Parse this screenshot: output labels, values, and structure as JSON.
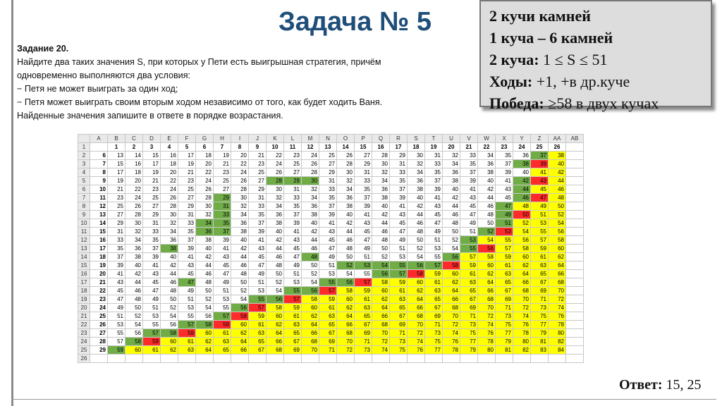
{
  "title": "Задача № 5",
  "task": {
    "heading": "Задание 20.",
    "lines": [
      "Найдите два таких значения S, при которых у Пети есть выигрышная стратегия, причём",
      "одновременно выполняются два условия:",
      "− Петя не может выиграть за один ход;",
      "− Петя может выиграть своим вторым ходом независимо от того, как будет ходить Ваня.",
      "Найденные значения запишите в ответе в порядке возрастания."
    ]
  },
  "infobox": {
    "line1": "2 кучи камней",
    "line2": "1 куча – 6 камней",
    "line3_label": "2 куча:",
    "line3_value": " 1 ≤ S ≤ 51",
    "line4_label": "Ходы:",
    "line4_value": " +1, +в др.куче",
    "line5_label": "Победа:",
    "line5_value": " ≥58 в двух кучах"
  },
  "answer": {
    "label": "Ответ:",
    "value": " 15, 25"
  },
  "colors": {
    "green": "#70ad47",
    "red": "#ff2a2a",
    "yellow": "#ffff00",
    "title": "#1f4e79"
  },
  "sheet": {
    "columns": [
      "A",
      "B",
      "C",
      "D",
      "E",
      "F",
      "G",
      "H",
      "I",
      "J",
      "K",
      "L",
      "M",
      "N",
      "O",
      "P",
      "Q",
      "R",
      "S",
      "T",
      "U",
      "V",
      "W",
      "X",
      "Y",
      "Z",
      "AA",
      "AB"
    ],
    "header_values": [
      "1",
      "2",
      "3",
      "4",
      "5",
      "6",
      "7",
      "8",
      "9",
      "10",
      "11",
      "12",
      "13",
      "14",
      "15",
      "16",
      "17",
      "18",
      "19",
      "20",
      "21",
      "22",
      "23",
      "24",
      "25",
      "26"
    ],
    "row_s": [
      "6",
      "7",
      "8",
      "9",
      "10",
      "11",
      "12",
      "13",
      "14",
      "15",
      "16",
      "17",
      "18",
      "19",
      "20",
      "21",
      "22",
      "23",
      "24",
      "25",
      "26",
      "27",
      "28",
      "29"
    ],
    "first_value": [
      13,
      15,
      17,
      19,
      21,
      23,
      25,
      27,
      29,
      31,
      33,
      35,
      37,
      39,
      41,
      43,
      45,
      47,
      49,
      51,
      53,
      55,
      57,
      59
    ],
    "color_rows": [
      "........................gy",
      ".......................gry",
      "........................yy",
      ".........ggg...........gry",
      ".......................gyy",
      "......g................gry",
      "......g...............gyyy",
      "......g...............gryy",
      ".....gg...............gyyy",
      ".....gg..............gryyy",
      "....................gyyyyy",
      "...g................gryyyy",
      "...........g.......gyyyyyy",
      ".............ggggggryyyyyy",
      "...............ggryyyyyyyy",
      "....g.......ggryyyyyyyyyyy",
      "..........ggryyyyyyyyyyyyy",
      "........ggryyyyyyyyyyyyyyy",
      ".......gryyyyyyyyyyyyyyyyy",
      "......gryyyyyyyyyyyyyyyyyy",
      "....ggryyyyyyyyyyyyyyyyyyy",
      "..ggryyyyyyyyyyyyyyyyyyyyy",
      ".gryyyyyyyyyyyyyyyyyyyyyyy",
      "gyyyyyyyyyyyyyyyyyyyyyyyyy"
    ]
  }
}
